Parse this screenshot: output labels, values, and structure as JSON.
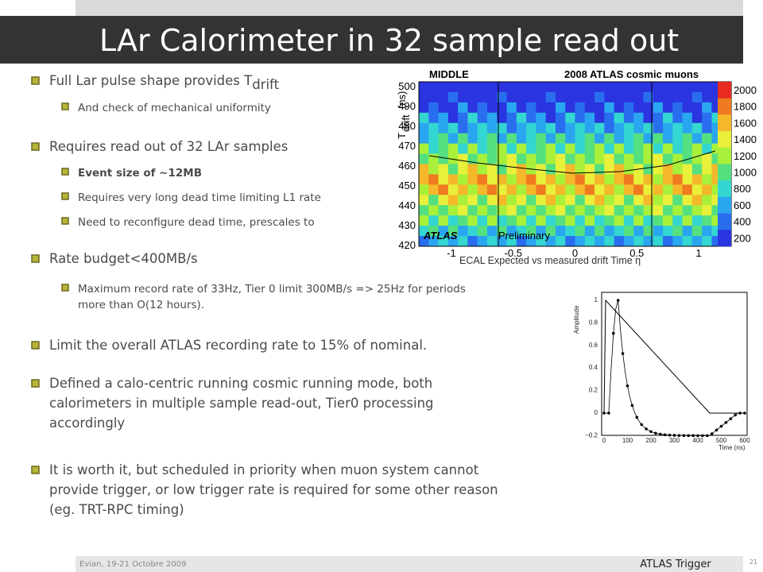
{
  "header": {
    "title": "LAr Calorimeter in 32 sample read out"
  },
  "bullets": [
    {
      "lines": [
        "Full Lar pulse shape provides  T"
      ],
      "subscript": "drift",
      "sub": [
        {
          "lines": [
            "And check of mechanical uniformity"
          ]
        }
      ]
    },
    {
      "lines": [
        "Requires read out of 32 LAr samples"
      ],
      "sub": [
        {
          "lines": [
            "Event size of ~12MB"
          ]
        },
        {
          "lines": [
            "Requires very long dead time limiting L1 rate"
          ]
        },
        {
          "lines": [
            "Need to reconfigure dead time, prescales to"
          ]
        }
      ]
    },
    {
      "lines": [
        "Rate budget<400MB/s"
      ],
      "sub": [
        {
          "lines": [
            "Maximum record rate of 33Hz, Tier 0 limit 300MB/s => 25Hz for periods",
            "more than O(12 hours)."
          ]
        }
      ]
    },
    {
      "lines": [
        "Limit the overall ATLAS recording rate to 15% of nominal."
      ]
    },
    {
      "lines": [
        "Defined a calo-centric running cosmic running mode, both",
        "calorimeters in multiple sample read-out, Tier0 processing",
        "accordingly"
      ]
    },
    {
      "lines": [
        "It is worth it, but scheduled in priority when muon system cannot",
        "provide trigger, or low trigger rate is required for some other reason",
        "(eg. TRT-RPC  timing)"
      ]
    }
  ],
  "drift_plot": {
    "label_left": "MIDDLE",
    "label_right": "2008 ATLAS cosmic muons",
    "y_label": "T",
    "y_label_sub": "drift",
    "y_label_unit": "(ns)",
    "yticks": [
      "500",
      "490",
      "480",
      "470",
      "460",
      "450",
      "440",
      "430",
      "420"
    ],
    "xticks": [
      "-1",
      "-0.5",
      "0",
      "0.5",
      "1"
    ],
    "colorbar": [
      "2000",
      "1800",
      "1600",
      "1400",
      "1200",
      "1000",
      "800",
      "600",
      "400",
      "200"
    ],
    "atlas": "ATLAS",
    "preliminary": "Preliminary",
    "caption": "ECAL Expected vs measured drift Time  η"
  },
  "pulse_plot": {
    "y_label": "Amplitude",
    "x_label": "Time (ns)",
    "yticks": [
      "1",
      "0.8",
      "0.6",
      "0.4",
      "0.2",
      "0",
      "−0.2"
    ],
    "xticks": [
      "0",
      "100",
      "200",
      "300",
      "400",
      "500",
      "600"
    ]
  },
  "footer": {
    "left": "Evian, 19-21 Octobre 2009",
    "center": "ATLAS Trigger",
    "page": "21"
  }
}
